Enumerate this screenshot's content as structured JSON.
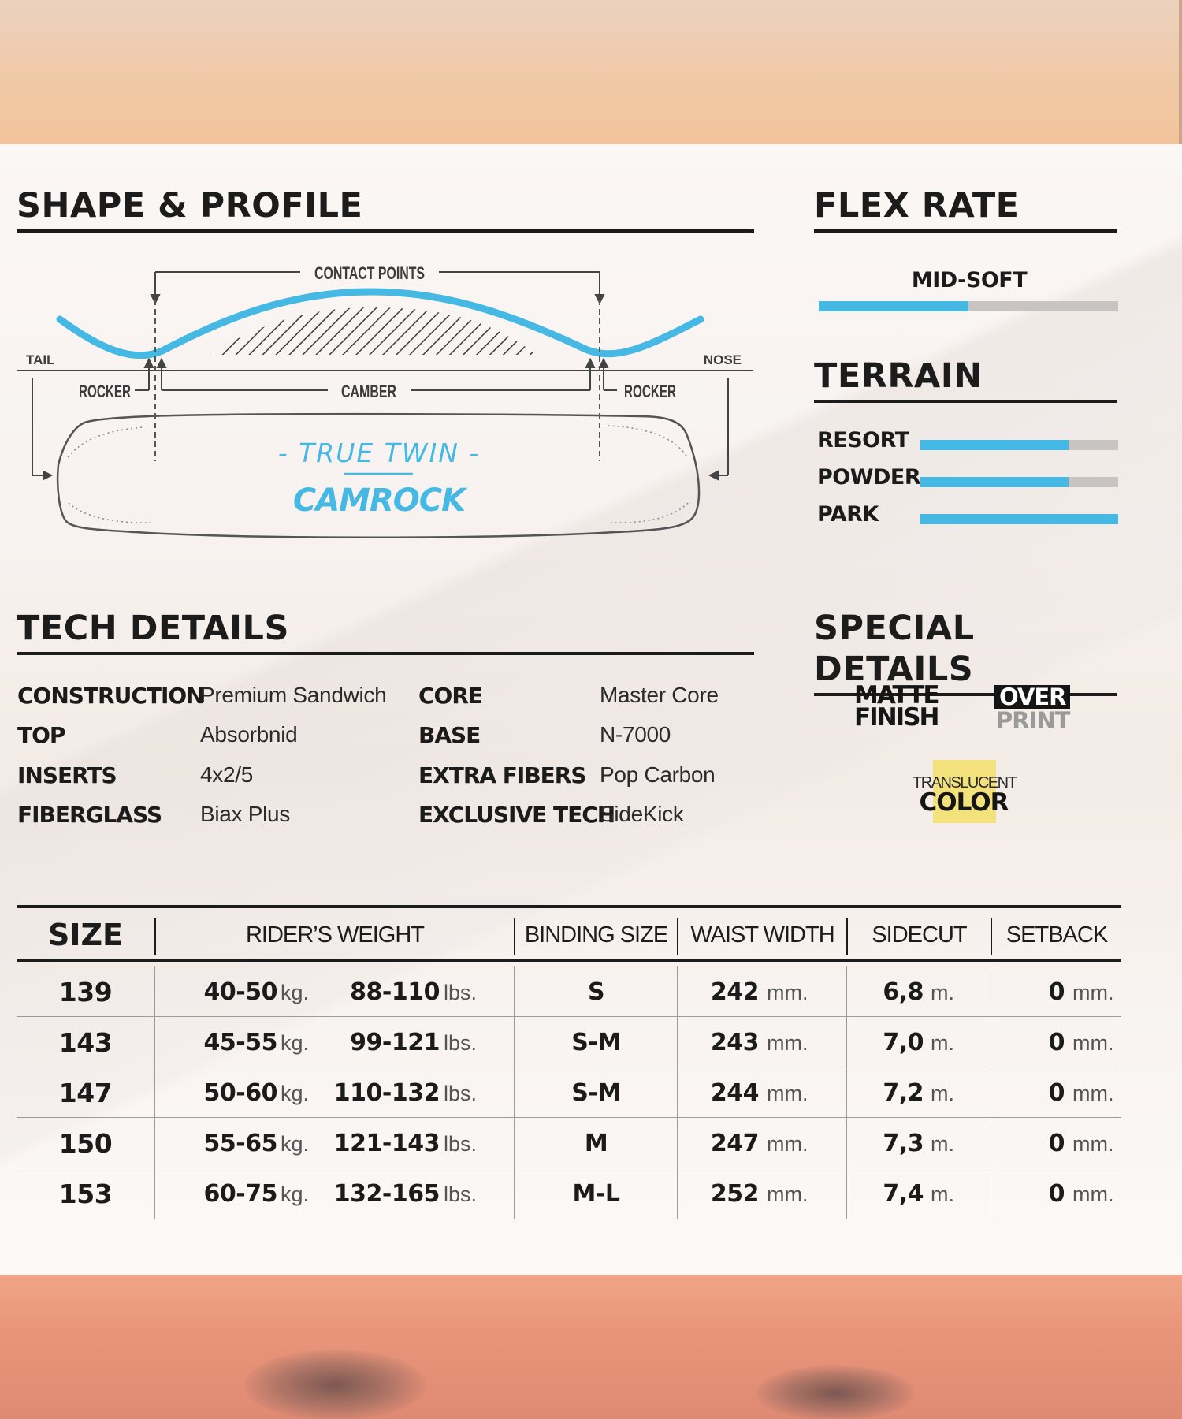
{
  "sections": {
    "shape_profile": "SHAPE & PROFILE",
    "flex_rate": "FLEX RATE",
    "terrain": "TERRAIN",
    "tech_details": "TECH DETAILS",
    "special_details": "SPECIAL DETAILS"
  },
  "profile": {
    "contact_points": "CONTACT POINTS",
    "tail": "TAIL",
    "nose": "NOSE",
    "rocker_left": "ROCKER",
    "camber": "CAMBER",
    "rocker_right": "ROCKER",
    "shape": "- TRUE TWIN -",
    "profile_name": "CAMROCK"
  },
  "flex": {
    "label": "MID-SOFT",
    "level": 0.5
  },
  "terrain": [
    {
      "label": "RESORT",
      "level": 0.75
    },
    {
      "label": "POWDER",
      "level": 0.75
    },
    {
      "label": "PARK",
      "level": 1.0
    }
  ],
  "tech": {
    "left": [
      {
        "key": "CONSTRUCTION",
        "value": "Premium Sandwich"
      },
      {
        "key": "TOP",
        "value": "Absorbnid"
      },
      {
        "key": "INSERTS",
        "value": "4x2/5"
      },
      {
        "key": "FIBERGLASS",
        "value": "Biax Plus"
      }
    ],
    "right": [
      {
        "key": "CORE",
        "value": "Master Core"
      },
      {
        "key": "BASE",
        "value": "N-7000"
      },
      {
        "key": "EXTRA FIBERS",
        "value": "Pop Carbon"
      },
      {
        "key": "EXCLUSIVE TECH",
        "value": "SideKick"
      }
    ]
  },
  "special": {
    "matte_line1": "MATTE",
    "matte_line2": "FINISH",
    "over": "OVER",
    "print": "PRINT",
    "translucent": "TRANSLUCENT",
    "color": "COLOR"
  },
  "table": {
    "headers": {
      "size": "SIZE",
      "riders_weight": "RIDER’S WEIGHT",
      "binding_size": "BINDING SIZE",
      "waist_width": "WAIST WIDTH",
      "sidecut": "SIDECUT",
      "setback": "SETBACK"
    },
    "units": {
      "kg": "kg.",
      "lbs": "lbs.",
      "mm": "mm.",
      "m": "m."
    },
    "rows": [
      {
        "size": "139",
        "kg": "40-50",
        "lbs": "88-110",
        "binding": "S",
        "waist": "242",
        "sidecut": "6,8",
        "setback": "0"
      },
      {
        "size": "143",
        "kg": "45-55",
        "lbs": "99-121",
        "binding": "S-M",
        "waist": "243",
        "sidecut": "7,0",
        "setback": "0"
      },
      {
        "size": "147",
        "kg": "50-60",
        "lbs": "110-132",
        "binding": "S-M",
        "waist": "244",
        "sidecut": "7,2",
        "setback": "0"
      },
      {
        "size": "150",
        "kg": "55-65",
        "lbs": "121-143",
        "binding": "M",
        "waist": "247",
        "sidecut": "7,3",
        "setback": "0"
      },
      {
        "size": "153",
        "kg": "60-75",
        "lbs": "132-165",
        "binding": "M-L",
        "waist": "252",
        "sidecut": "7,4",
        "setback": "0"
      }
    ]
  },
  "colors": {
    "accent": "#45b8e4",
    "track": "#c8c4c2",
    "highlight": "#f3e27c",
    "ink": "#1c1c1c"
  }
}
